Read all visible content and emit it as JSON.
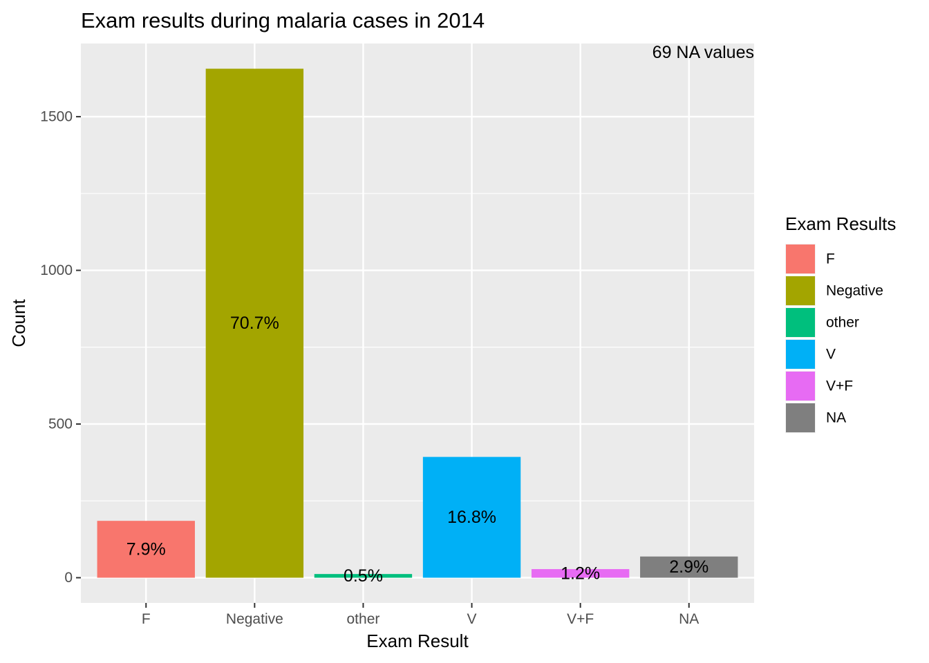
{
  "chart_data": {
    "type": "bar",
    "title": "Exam results during malaria cases in 2014",
    "xlabel": "Exam Result",
    "ylabel": "Count",
    "categories": [
      "F",
      "Negative",
      "other",
      "V",
      "V+F",
      "NA"
    ],
    "values": [
      185,
      1656,
      12,
      393,
      28,
      69
    ],
    "labels": [
      "7.9%",
      "70.7%",
      "0.5%",
      "16.8%",
      "1.2%",
      "2.9%"
    ],
    "colors": [
      "#F8766D",
      "#A3A500",
      "#00BF7D",
      "#00B0F6",
      "#E76BF3",
      "#7F7F7F"
    ],
    "ylim": [
      -82,
      1738
    ],
    "yticks": [
      0,
      500,
      1000,
      1500
    ],
    "grid": true,
    "annotation": "69 NA values",
    "legend": {
      "title": "Exam Results",
      "position": "right",
      "entries": [
        "F",
        "Negative",
        "other",
        "V",
        "V+F",
        "NA"
      ]
    }
  }
}
